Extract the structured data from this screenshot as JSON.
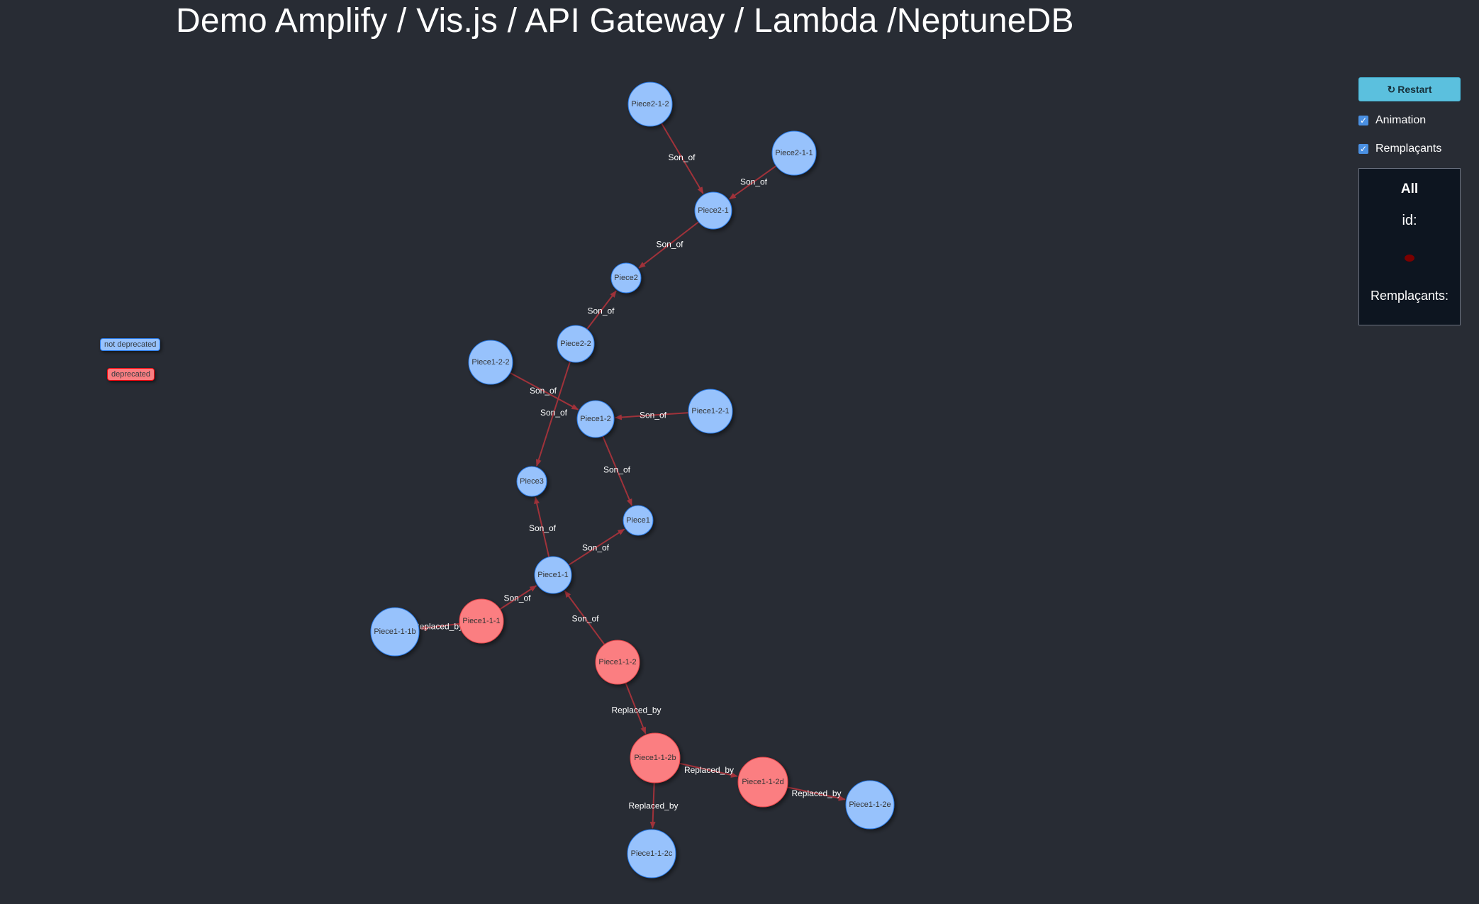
{
  "header": {
    "title": "Demo Amplify / Vis.js / API Gateway / Lambda /NeptuneDB"
  },
  "legend": {
    "not_deprecated": "not deprecated",
    "deprecated": "deprecated"
  },
  "controls": {
    "restart_label": "Restart",
    "restart_icon": "refresh-icon",
    "animation_label": "Animation",
    "animation_checked": true,
    "replacements_label": "Remplaçants",
    "replacements_checked": true
  },
  "info_panel": {
    "title": "All",
    "id_label": "id:",
    "replacements_label": "Remplaçants:"
  },
  "colors": {
    "background": "#282c34",
    "not_deprecated": "#97c2fc",
    "deprecated": "#fb7e81",
    "edge": "#a0323a",
    "restart_button": "#5bc0de"
  },
  "graph": {
    "nodes": [
      {
        "id": "Piece2-1-2",
        "status": "not deprecated"
      },
      {
        "id": "Piece2-1-1",
        "status": "not deprecated"
      },
      {
        "id": "Piece2-1",
        "status": "not deprecated"
      },
      {
        "id": "Piece2",
        "status": "not deprecated"
      },
      {
        "id": "Piece2-2",
        "status": "not deprecated"
      },
      {
        "id": "Piece1-2-2",
        "status": "not deprecated"
      },
      {
        "id": "Piece1-2",
        "status": "not deprecated"
      },
      {
        "id": "Piece1-2-1",
        "status": "not deprecated"
      },
      {
        "id": "Piece3",
        "status": "not deprecated"
      },
      {
        "id": "Piece1",
        "status": "not deprecated"
      },
      {
        "id": "Piece1-1",
        "status": "not deprecated"
      },
      {
        "id": "Piece1-1-1",
        "status": "deprecated"
      },
      {
        "id": "Piece1-1-1b",
        "status": "not deprecated"
      },
      {
        "id": "Piece1-1-2",
        "status": "deprecated"
      },
      {
        "id": "Piece1-1-2b",
        "status": "deprecated"
      },
      {
        "id": "Piece1-1-2d",
        "status": "deprecated"
      },
      {
        "id": "Piece1-1-2e",
        "status": "not deprecated"
      },
      {
        "id": "Piece1-1-2c",
        "status": "not deprecated"
      }
    ],
    "edges": [
      {
        "from": "Piece2-1-2",
        "to": "Piece2-1",
        "label": "Son_of"
      },
      {
        "from": "Piece2-1-1",
        "to": "Piece2-1",
        "label": "Son_of"
      },
      {
        "from": "Piece2-1",
        "to": "Piece2",
        "label": "Son_of"
      },
      {
        "from": "Piece2-2",
        "to": "Piece2",
        "label": "Son_of"
      },
      {
        "from": "Piece2-2",
        "to": "Piece3",
        "label": "Son_of"
      },
      {
        "from": "Piece1-2-2",
        "to": "Piece1-2",
        "label": "Son_of"
      },
      {
        "from": "Piece1-2-1",
        "to": "Piece1-2",
        "label": "Son_of"
      },
      {
        "from": "Piece1-2",
        "to": "Piece1",
        "label": "Son_of"
      },
      {
        "from": "Piece1-1",
        "to": "Piece3",
        "label": "Son_of"
      },
      {
        "from": "Piece1-1",
        "to": "Piece1",
        "label": "Son_of"
      },
      {
        "from": "Piece1-1-1",
        "to": "Piece1-1",
        "label": "Son_of"
      },
      {
        "from": "Piece1-1-2",
        "to": "Piece1-1",
        "label": "Son_of"
      },
      {
        "from": "Piece1-1-1",
        "to": "Piece1-1-1b",
        "label": "Replaced_by"
      },
      {
        "from": "Piece1-1-2",
        "to": "Piece1-1-2b",
        "label": "Replaced_by"
      },
      {
        "from": "Piece1-1-2b",
        "to": "Piece1-1-2d",
        "label": "Replaced_by"
      },
      {
        "from": "Piece1-1-2d",
        "to": "Piece1-1-2e",
        "label": "Replaced_by"
      },
      {
        "from": "Piece1-1-2b",
        "to": "Piece1-1-2c",
        "label": "Replaced_by"
      }
    ]
  }
}
